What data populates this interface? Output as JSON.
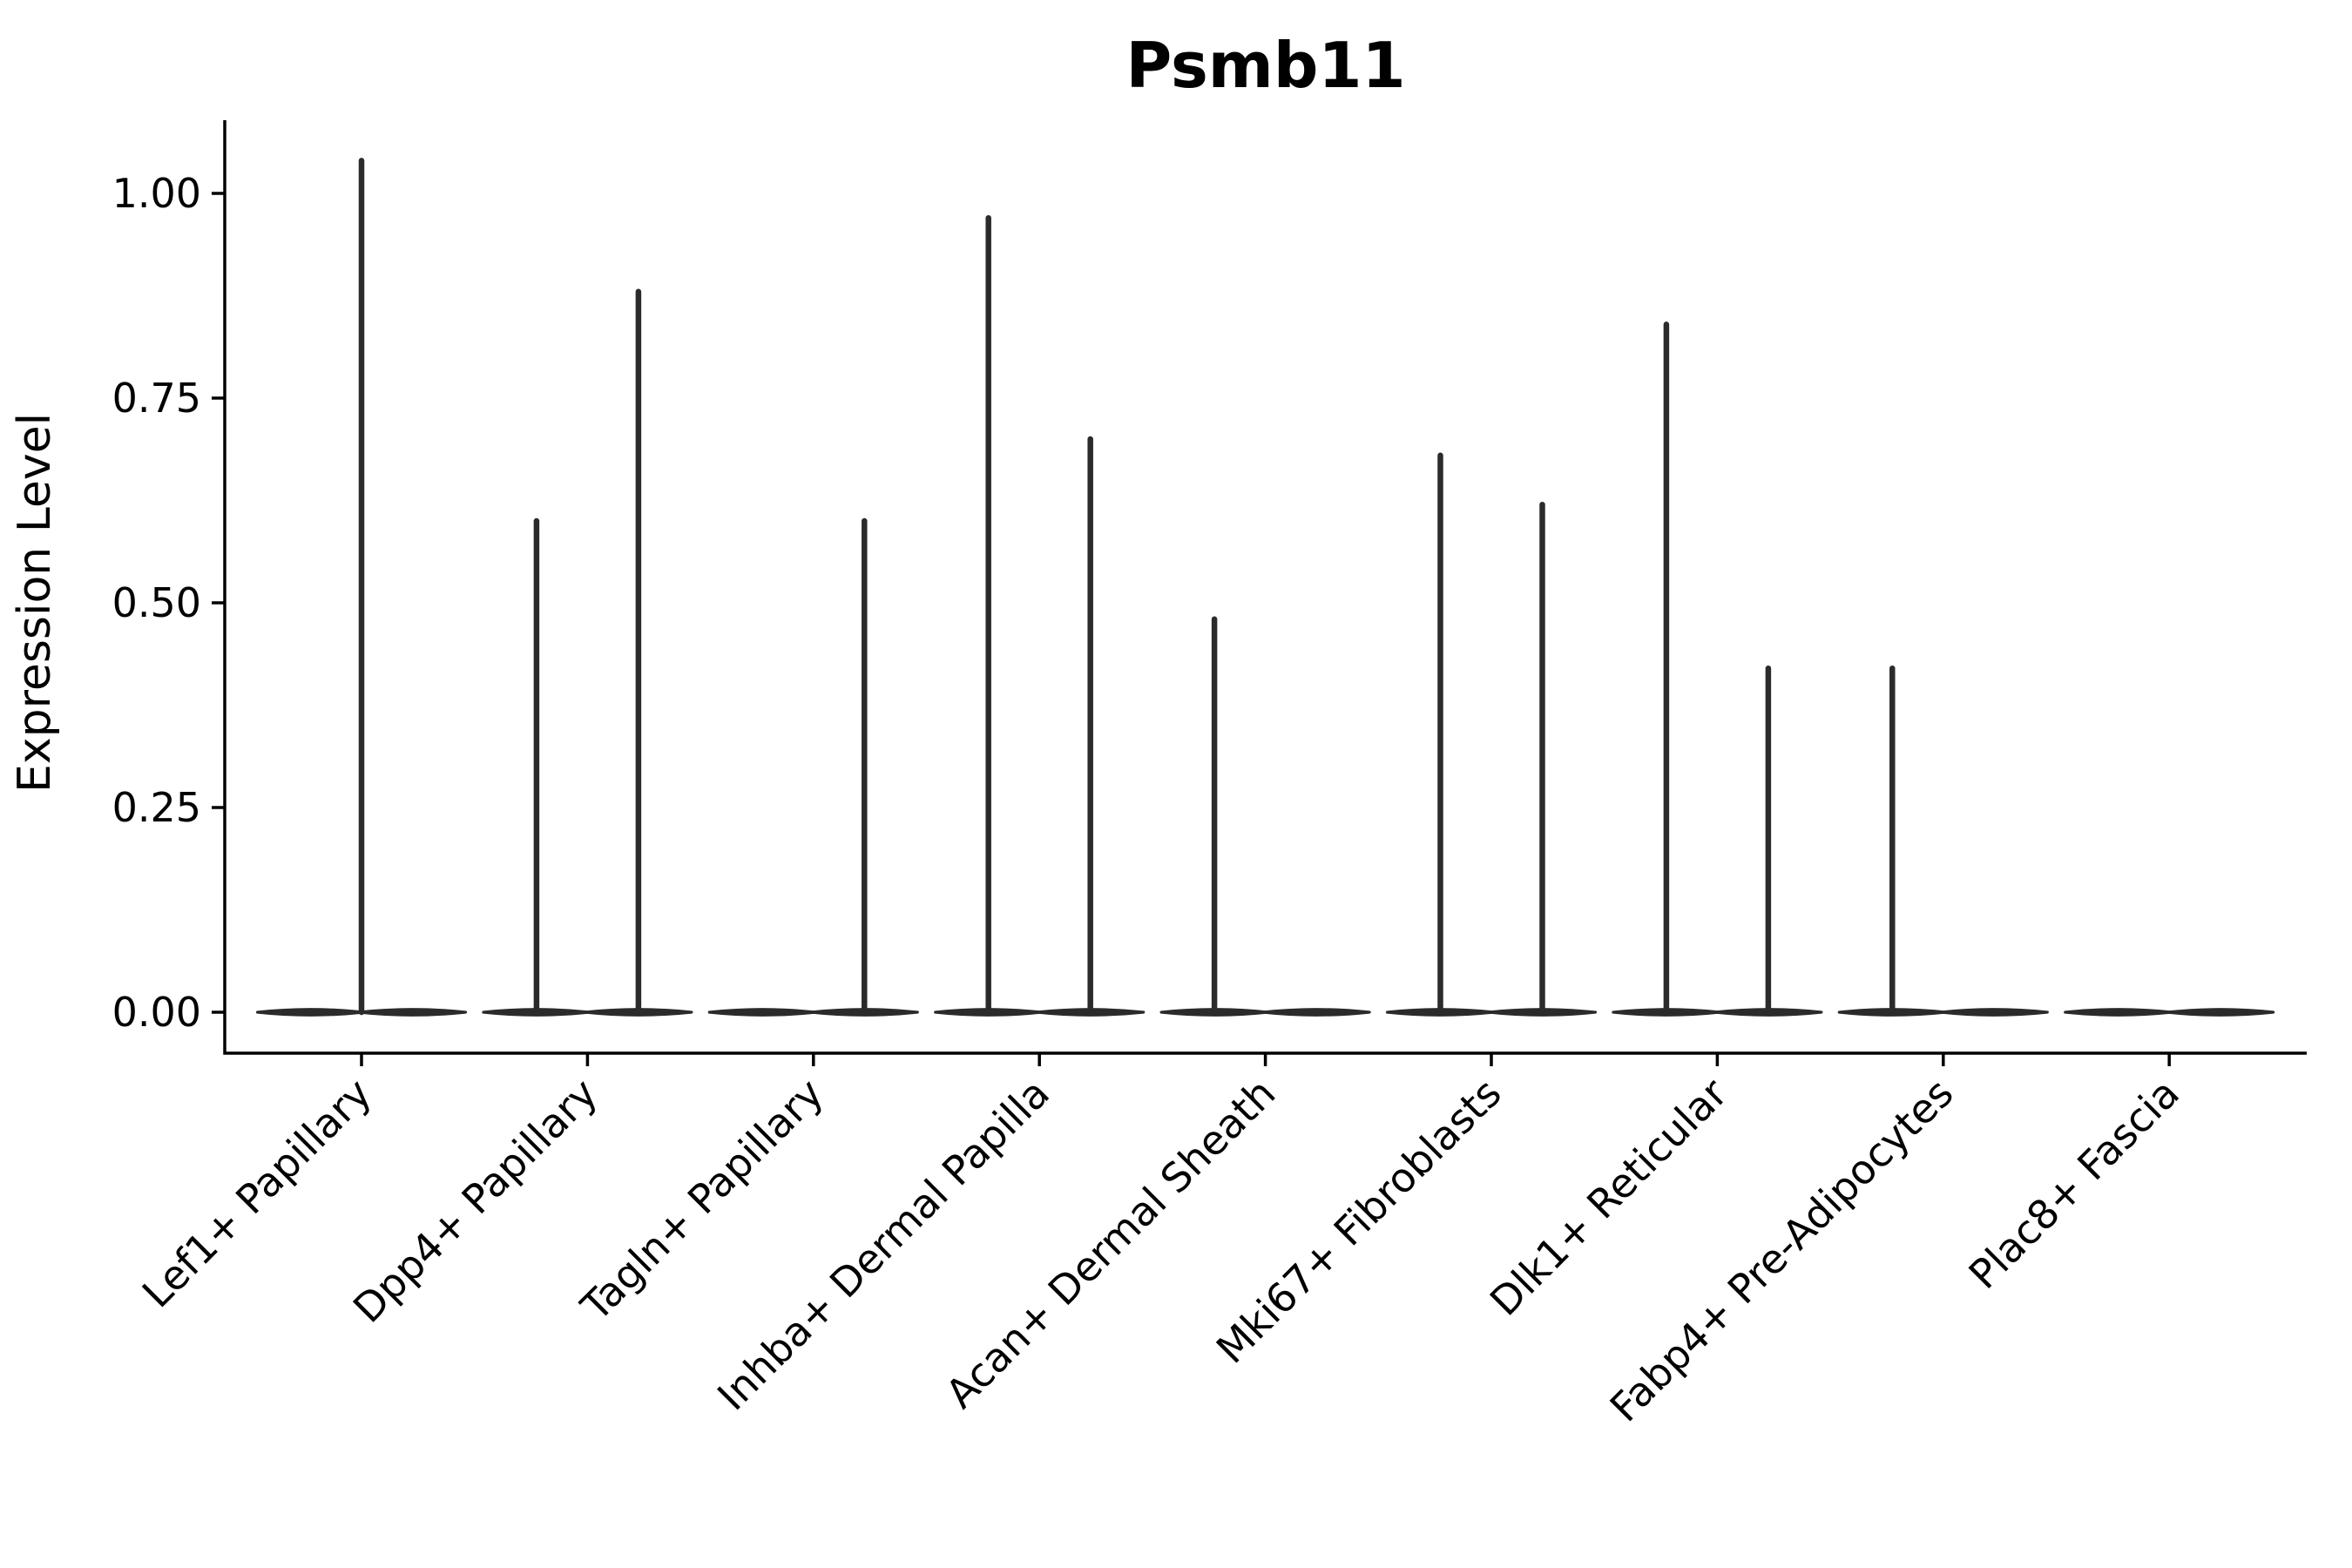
{
  "chart_data": {
    "type": "violin",
    "title": "Psmb11",
    "xlabel": "",
    "ylabel": "Expression Level",
    "legend_position": "none",
    "grid": false,
    "background": "#ffffff",
    "colors": {
      "violin": "#2b2b2b",
      "axis": "#000000",
      "text": "#000000"
    },
    "ylim": [
      -0.05,
      1.087
    ],
    "yticks": [
      {
        "value": 0.0,
        "label": "0.00"
      },
      {
        "value": 0.25,
        "label": "0.25"
      },
      {
        "value": 0.5,
        "label": "0.50"
      },
      {
        "value": 0.75,
        "label": "0.75"
      },
      {
        "value": 1.0,
        "label": "1.00"
      }
    ],
    "categories": [
      "Lef1+ Papillary",
      "Dpp4+ Papillary",
      "Tagln+ Papillary",
      "Inhba+ Dermal Papilla",
      "Acan+ Dermal Sheath",
      "Mki67+ Fibroblasts",
      "Dlk1+ Reticular",
      "Fabp4+ Pre-Adipocytes",
      "Plac8+ Fascia"
    ],
    "baseline_value": 0.0,
    "violins": [
      {
        "category": "Lef1+ Papillary",
        "spikes": [
          {
            "pos": "center",
            "max": 1.04
          }
        ]
      },
      {
        "category": "Dpp4+ Papillary",
        "spikes": [
          {
            "pos": "left",
            "max": 0.6
          },
          {
            "pos": "right",
            "max": 0.88
          }
        ]
      },
      {
        "category": "Tagln+ Papillary",
        "spikes": [
          {
            "pos": "right",
            "max": 0.6
          }
        ]
      },
      {
        "category": "Inhba+ Dermal Papilla",
        "spikes": [
          {
            "pos": "left",
            "max": 0.97
          },
          {
            "pos": "right",
            "max": 0.7
          }
        ]
      },
      {
        "category": "Acan+ Dermal Sheath",
        "spikes": [
          {
            "pos": "left",
            "max": 0.48
          }
        ]
      },
      {
        "category": "Mki67+ Fibroblasts",
        "spikes": [
          {
            "pos": "left",
            "max": 0.68
          },
          {
            "pos": "right",
            "max": 0.62
          }
        ]
      },
      {
        "category": "Dlk1+ Reticular",
        "spikes": [
          {
            "pos": "left",
            "max": 0.84
          },
          {
            "pos": "right",
            "max": 0.42
          }
        ]
      },
      {
        "category": "Fabp4+ Pre-Adipocytes",
        "spikes": [
          {
            "pos": "left",
            "max": 0.42
          }
        ]
      },
      {
        "category": "Plac8+ Fascia",
        "spikes": []
      }
    ]
  }
}
